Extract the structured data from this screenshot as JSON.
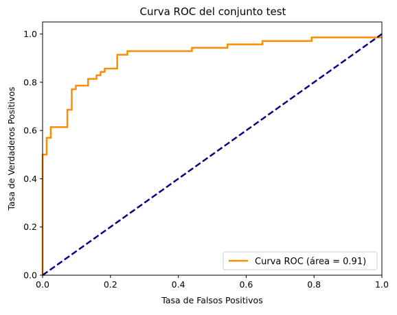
{
  "chart_data": {
    "type": "line",
    "title": "Curva ROC del conjunto test",
    "xlabel": "Tasa de Falsos Positivos",
    "ylabel": "Tasa de Verdaderos Positivos",
    "xlim": [
      0.0,
      1.0
    ],
    "ylim": [
      0.0,
      1.05
    ],
    "x_ticks": [
      0.0,
      0.2,
      0.4,
      0.6,
      0.8,
      1.0
    ],
    "y_ticks": [
      0.0,
      0.2,
      0.4,
      0.6,
      0.8,
      1.0
    ],
    "x_tick_labels": [
      "0.0",
      "0.2",
      "0.4",
      "0.6",
      "0.8",
      "1.0"
    ],
    "y_tick_labels": [
      "0.0",
      "0.2",
      "0.4",
      "0.6",
      "0.8",
      "1.0"
    ],
    "grid": false,
    "legend_position": "lower right",
    "series": [
      {
        "name": "Curva ROC (área = 0.91)",
        "color": "#ff8c00",
        "style": "solid",
        "x": [
          0.0,
          0.0,
          0.0,
          0.012,
          0.012,
          0.024,
          0.024,
          0.073,
          0.073,
          0.086,
          0.086,
          0.098,
          0.098,
          0.134,
          0.134,
          0.159,
          0.159,
          0.171,
          0.171,
          0.183,
          0.183,
          0.22,
          0.22,
          0.25,
          0.25,
          0.44,
          0.44,
          0.545,
          0.545,
          0.648,
          0.648,
          0.793,
          0.793,
          1.0
        ],
        "y": [
          0.0,
          0.5,
          0.5,
          0.5,
          0.57,
          0.57,
          0.614,
          0.614,
          0.686,
          0.686,
          0.771,
          0.771,
          0.786,
          0.786,
          0.814,
          0.814,
          0.829,
          0.829,
          0.843,
          0.843,
          0.857,
          0.857,
          0.914,
          0.914,
          0.929,
          0.929,
          0.943,
          0.943,
          0.957,
          0.957,
          0.971,
          0.971,
          0.986,
          0.986
        ]
      },
      {
        "name": "",
        "color": "#000080",
        "style": "dashed",
        "x": [
          0.0,
          1.0
        ],
        "y": [
          0.0,
          1.0
        ]
      }
    ]
  }
}
